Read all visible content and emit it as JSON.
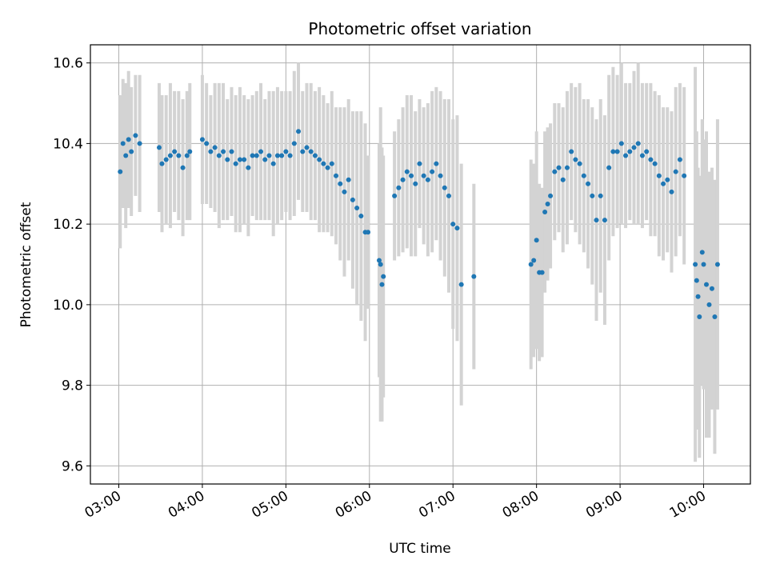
{
  "chart_data": {
    "type": "scatter",
    "title": "Photometric offset variation",
    "xlabel": "UTC time",
    "ylabel": "Photometric offset",
    "x_ticks": [
      "03:00",
      "04:00",
      "05:00",
      "06:00",
      "07:00",
      "08:00",
      "09:00",
      "10:00"
    ],
    "y_ticks": [
      "9.6",
      "9.8",
      "10.0",
      "10.2",
      "10.4",
      "10.6"
    ],
    "xlim_hours": [
      2.66,
      10.56
    ],
    "ylim": [
      9.555,
      10.645
    ],
    "grid": true,
    "colors": {
      "points": "#1f77b4",
      "errorbars": "#d3d3d3",
      "grid": "#b0b0b0"
    },
    "series": [
      {
        "x": [
          "03:01",
          "03:03",
          "03:05",
          "03:07",
          "03:09",
          "03:12",
          "03:15",
          "03:29",
          "03:31",
          "03:34",
          "03:37",
          "03:40",
          "03:43",
          "03:46",
          "03:49",
          "03:51",
          "04:00",
          "04:03",
          "04:06",
          "04:09",
          "04:12",
          "04:15",
          "04:18",
          "04:21",
          "04:24",
          "04:27",
          "04:30",
          "04:33",
          "04:36",
          "04:39",
          "04:42",
          "04:45",
          "04:48",
          "04:51",
          "04:54",
          "04:57",
          "05:00",
          "05:03",
          "05:06",
          "05:09",
          "05:12",
          "05:15",
          "05:18",
          "05:21",
          "05:24",
          "05:27",
          "05:30",
          "05:33",
          "05:36",
          "05:39",
          "05:42",
          "05:45",
          "05:48",
          "05:51",
          "05:54",
          "05:57",
          "05:59",
          "06:07",
          "06:08",
          "06:09",
          "06:10",
          "06:18",
          "06:21",
          "06:24",
          "06:27",
          "06:30",
          "06:33",
          "06:36",
          "06:39",
          "06:42",
          "06:45",
          "06:48",
          "06:51",
          "06:54",
          "06:57",
          "07:00",
          "07:03",
          "07:06",
          "07:15",
          "07:56",
          "07:58",
          "08:00",
          "08:02",
          "08:04",
          "08:06",
          "08:08",
          "08:10",
          "08:13",
          "08:16",
          "08:19",
          "08:22",
          "08:25",
          "08:28",
          "08:31",
          "08:34",
          "08:37",
          "08:40",
          "08:43",
          "08:46",
          "08:49",
          "08:52",
          "08:55",
          "08:58",
          "09:01",
          "09:04",
          "09:07",
          "09:10",
          "09:13",
          "09:16",
          "09:19",
          "09:22",
          "09:25",
          "09:28",
          "09:31",
          "09:34",
          "09:37",
          "09:40",
          "09:43",
          "09:46",
          "09:54",
          "09:55",
          "09:56",
          "09:57",
          "09:59",
          "10:00",
          "10:02",
          "10:04",
          "10:06",
          "10:08",
          "10:10"
        ],
        "y": [
          10.33,
          10.4,
          10.37,
          10.41,
          10.38,
          10.42,
          10.4,
          10.39,
          10.35,
          10.36,
          10.37,
          10.38,
          10.37,
          10.34,
          10.37,
          10.38,
          10.41,
          10.4,
          10.38,
          10.39,
          10.37,
          10.38,
          10.36,
          10.38,
          10.35,
          10.36,
          10.36,
          10.34,
          10.37,
          10.37,
          10.38,
          10.36,
          10.37,
          10.35,
          10.37,
          10.37,
          10.38,
          10.37,
          10.4,
          10.43,
          10.38,
          10.39,
          10.38,
          10.37,
          10.36,
          10.35,
          10.34,
          10.35,
          10.32,
          10.3,
          10.28,
          10.31,
          10.26,
          10.24,
          10.22,
          10.18,
          10.18,
          10.11,
          10.1,
          10.05,
          10.07,
          10.27,
          10.29,
          10.31,
          10.33,
          10.32,
          10.3,
          10.35,
          10.32,
          10.31,
          10.33,
          10.35,
          10.32,
          10.29,
          10.27,
          10.2,
          10.19,
          10.05,
          10.07,
          10.1,
          10.11,
          10.16,
          10.08,
          10.08,
          10.23,
          10.25,
          10.27,
          10.33,
          10.34,
          10.31,
          10.34,
          10.38,
          10.36,
          10.35,
          10.32,
          10.3,
          10.27,
          10.21,
          10.27,
          10.21,
          10.34,
          10.38,
          10.38,
          10.4,
          10.37,
          10.38,
          10.39,
          10.4,
          10.37,
          10.38,
          10.36,
          10.35,
          10.32,
          10.3,
          10.31,
          10.28,
          10.33,
          10.36,
          10.32,
          10.1,
          10.06,
          10.02,
          9.97,
          10.13,
          10.1,
          10.05,
          10.0,
          10.04,
          9.97,
          10.1
        ],
        "yerr": [
          0.19,
          0.16,
          0.18,
          0.17,
          0.16,
          0.15,
          0.17,
          0.16,
          0.17,
          0.16,
          0.18,
          0.15,
          0.16,
          0.17,
          0.16,
          0.17,
          0.16,
          0.15,
          0.14,
          0.16,
          0.18,
          0.17,
          0.15,
          0.16,
          0.17,
          0.18,
          0.16,
          0.17,
          0.15,
          0.16,
          0.17,
          0.15,
          0.16,
          0.18,
          0.17,
          0.16,
          0.15,
          0.16,
          0.18,
          0.17,
          0.15,
          0.16,
          0.17,
          0.16,
          0.18,
          0.17,
          0.16,
          0.18,
          0.17,
          0.19,
          0.21,
          0.2,
          0.22,
          0.24,
          0.26,
          0.27,
          0.19,
          0.29,
          0.39,
          0.34,
          0.3,
          0.16,
          0.17,
          0.18,
          0.19,
          0.2,
          0.18,
          0.16,
          0.17,
          0.19,
          0.2,
          0.19,
          0.21,
          0.22,
          0.24,
          0.26,
          0.28,
          0.3,
          0.23,
          0.26,
          0.24,
          0.27,
          0.22,
          0.21,
          0.2,
          0.19,
          0.18,
          0.17,
          0.16,
          0.18,
          0.19,
          0.17,
          0.18,
          0.2,
          0.19,
          0.21,
          0.22,
          0.25,
          0.24,
          0.26,
          0.23,
          0.21,
          0.19,
          0.2,
          0.18,
          0.17,
          0.19,
          0.2,
          0.18,
          0.17,
          0.19,
          0.18,
          0.2,
          0.19,
          0.18,
          0.2,
          0.21,
          0.19,
          0.22,
          0.49,
          0.37,
          0.32,
          0.35,
          0.33,
          0.31,
          0.38,
          0.33,
          0.3,
          0.34,
          0.36
        ]
      }
    ]
  }
}
